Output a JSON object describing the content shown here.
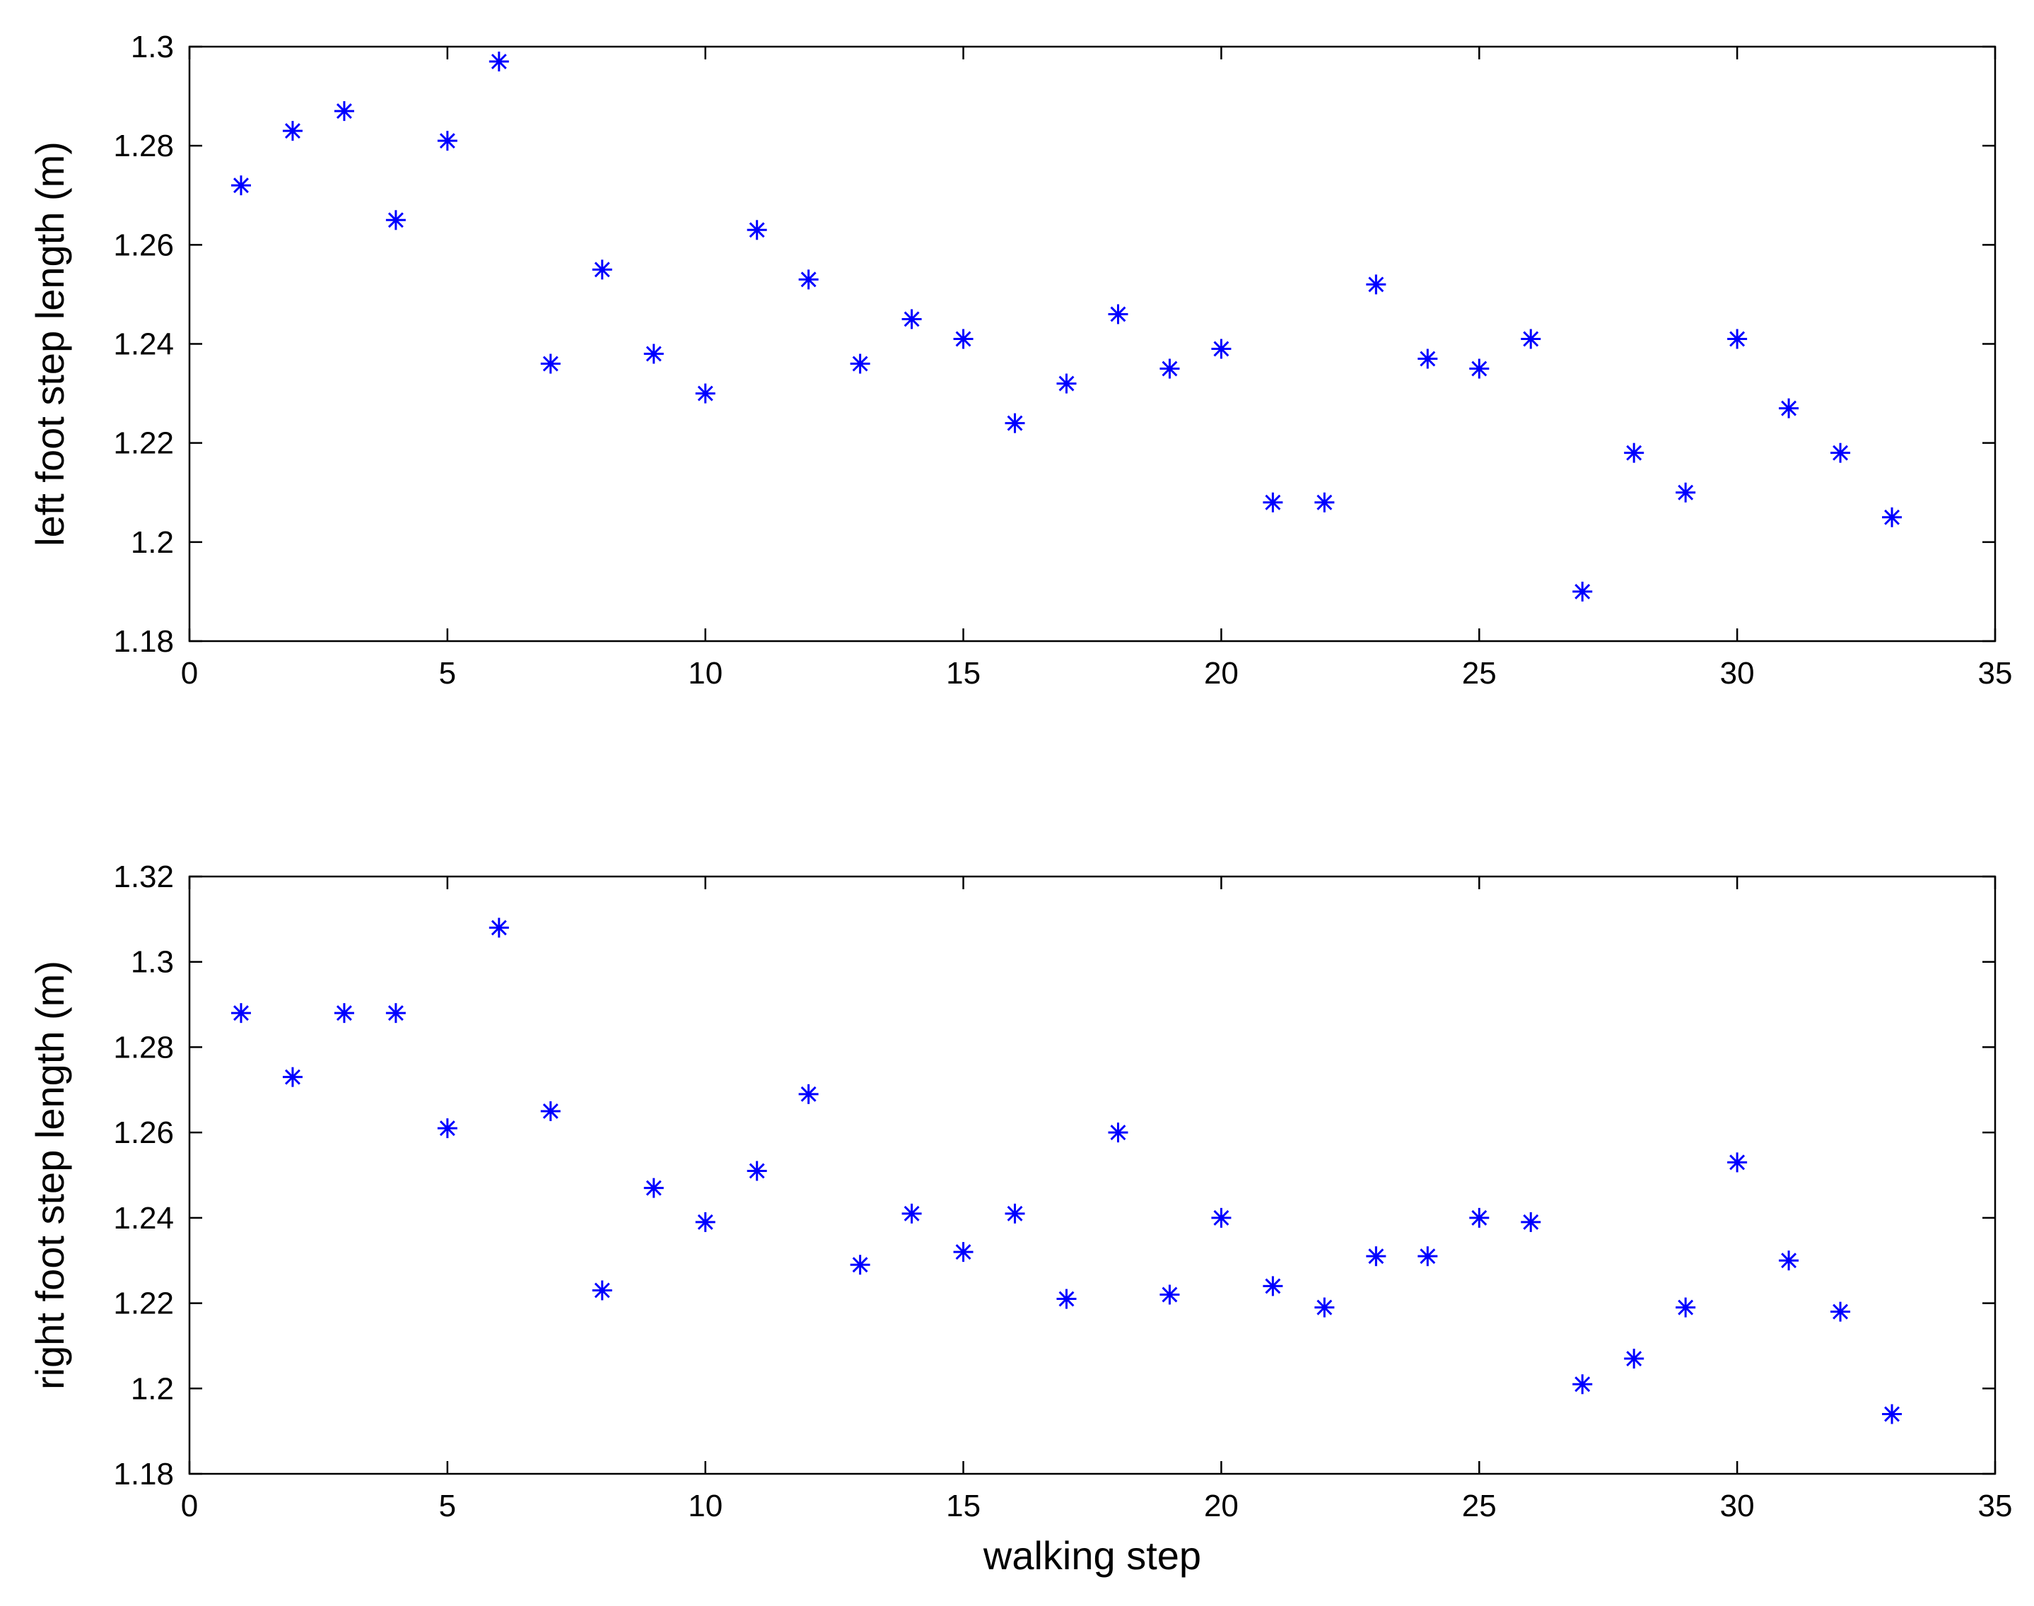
{
  "chart_data": [
    {
      "type": "scatter",
      "ylabel": "left foot step length (m)",
      "xlabel": "",
      "xlim": [
        0,
        35
      ],
      "ylim": [
        1.18,
        1.3
      ],
      "xticks": [
        0,
        5,
        10,
        15,
        20,
        25,
        30,
        35
      ],
      "yticks": [
        1.18,
        1.2,
        1.22,
        1.24,
        1.26,
        1.28,
        1.3
      ],
      "xtick_labels": [
        "0",
        "5",
        "10",
        "15",
        "20",
        "25",
        "30",
        "35"
      ],
      "ytick_labels": [
        "1.18",
        "1.2",
        "1.22",
        "1.24",
        "1.26",
        "1.28",
        "1.3"
      ],
      "marker": "asterisk",
      "color": "#0000ff",
      "grid": false,
      "x": [
        1,
        2,
        3,
        4,
        5,
        6,
        7,
        8,
        9,
        10,
        11,
        12,
        13,
        14,
        15,
        16,
        17,
        18,
        19,
        20,
        21,
        22,
        23,
        24,
        25,
        26,
        27,
        28,
        29,
        30,
        31,
        32,
        33
      ],
      "y": [
        1.272,
        1.283,
        1.287,
        1.265,
        1.281,
        1.297,
        1.236,
        1.255,
        1.238,
        1.23,
        1.263,
        1.253,
        1.236,
        1.245,
        1.241,
        1.224,
        1.232,
        1.246,
        1.235,
        1.239,
        1.208,
        1.208,
        1.252,
        1.237,
        1.235,
        1.241,
        1.19,
        1.218,
        1.21,
        1.241,
        1.227,
        1.218,
        1.205
      ]
    },
    {
      "type": "scatter",
      "ylabel": "right foot step length (m)",
      "xlabel": "walking step",
      "xlim": [
        0,
        35
      ],
      "ylim": [
        1.18,
        1.32
      ],
      "xticks": [
        0,
        5,
        10,
        15,
        20,
        25,
        30,
        35
      ],
      "yticks": [
        1.18,
        1.2,
        1.22,
        1.24,
        1.26,
        1.28,
        1.3,
        1.32
      ],
      "xtick_labels": [
        "0",
        "5",
        "10",
        "15",
        "20",
        "25",
        "30",
        "35"
      ],
      "ytick_labels": [
        "1.18",
        "1.2",
        "1.22",
        "1.24",
        "1.26",
        "1.28",
        "1.3",
        "1.32"
      ],
      "marker": "asterisk",
      "color": "#0000ff",
      "grid": false,
      "x": [
        1,
        2,
        3,
        4,
        5,
        6,
        7,
        8,
        9,
        10,
        11,
        12,
        13,
        14,
        15,
        16,
        17,
        18,
        19,
        20,
        21,
        22,
        23,
        24,
        25,
        26,
        27,
        28,
        29,
        30,
        31,
        32,
        33
      ],
      "y": [
        1.288,
        1.273,
        1.288,
        1.288,
        1.261,
        1.308,
        1.265,
        1.223,
        1.247,
        1.239,
        1.251,
        1.269,
        1.229,
        1.241,
        1.232,
        1.241,
        1.221,
        1.26,
        1.222,
        1.24,
        1.224,
        1.219,
        1.231,
        1.231,
        1.24,
        1.239,
        1.201,
        1.207,
        1.219,
        1.253,
        1.23,
        1.218,
        1.194
      ]
    }
  ]
}
